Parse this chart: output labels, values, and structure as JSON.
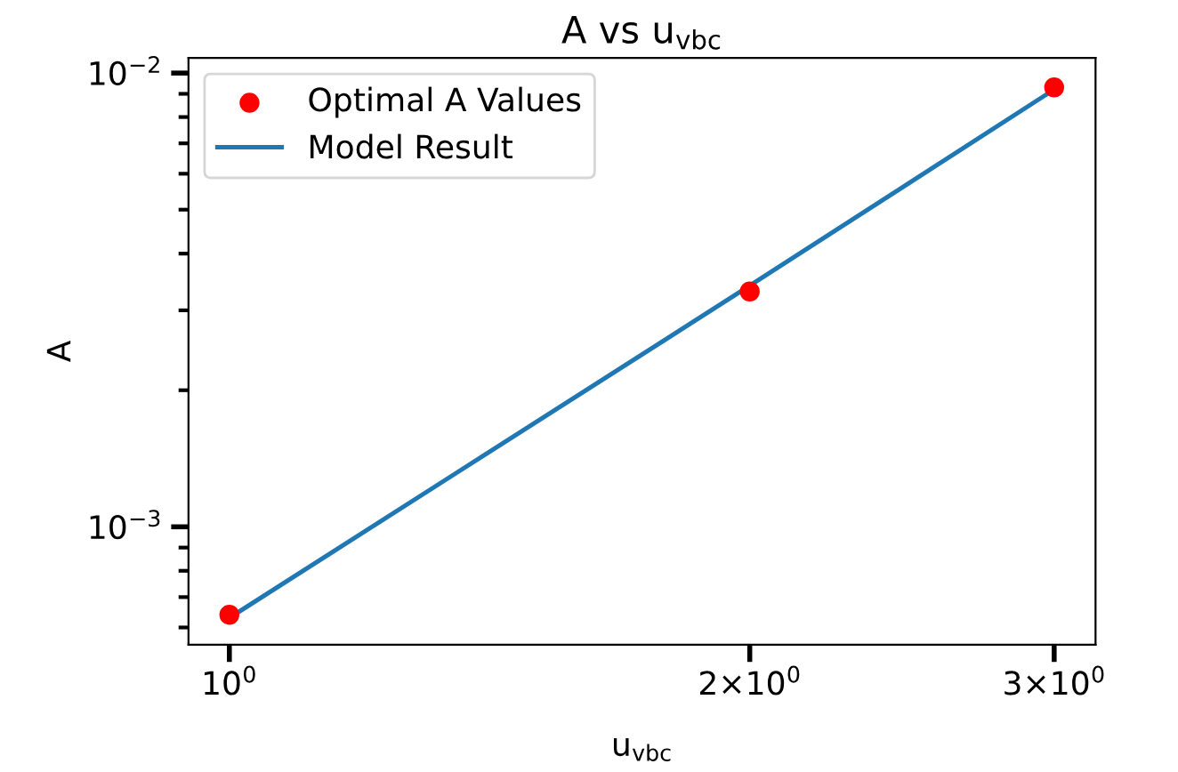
{
  "chart_data": {
    "type": "scatter",
    "title": "A vs u$_{vbc}$",
    "xlabel": "u$_{vbc}$",
    "ylabel": "A",
    "log": "xy",
    "legend": "top left",
    "marker": "circle",
    "x": [
      1,
      2,
      3
    ],
    "series": [
      {
        "name": "Optimal A Values",
        "color": "#ff0000",
        "values": [
          0.00064,
          0.0033,
          0.0093
        ]
      },
      {
        "name": "Model Result",
        "type": "line",
        "color": "#1f77b4",
        "line_style": "solid",
        "marker": "none",
        "values": [
          0.00063,
          0.0034,
          0.0092
        ]
      }
    ],
    "xlim": [
      0.947,
      3.17
    ],
    "ylim": [
      0.00055,
      0.0108
    ],
    "xticks": [
      {
        "value": 1,
        "label": "10$^{0}$"
      },
      {
        "value": 2,
        "label": "2×10$^{0}$"
      },
      {
        "value": 3,
        "label": "3×10$^{0}$"
      }
    ],
    "yticks": [
      {
        "value": 0.0006,
        "label": null
      },
      {
        "value": 0.0007,
        "label": null
      },
      {
        "value": 0.0008,
        "label": null
      },
      {
        "value": 0.0009,
        "label": null
      },
      {
        "value": 0.001,
        "label": "10$^{−3}$"
      },
      {
        "value": 0.002,
        "label": null
      },
      {
        "value": 0.003,
        "label": null
      },
      {
        "value": 0.004,
        "label": null
      },
      {
        "value": 0.005,
        "label": null
      },
      {
        "value": 0.006,
        "label": null
      },
      {
        "value": 0.007,
        "label": null
      },
      {
        "value": 0.008,
        "label": null
      },
      {
        "value": 0.009,
        "label": null
      },
      {
        "value": 0.01,
        "label": "10$^{−2}$"
      }
    ],
    "grid": false
  }
}
